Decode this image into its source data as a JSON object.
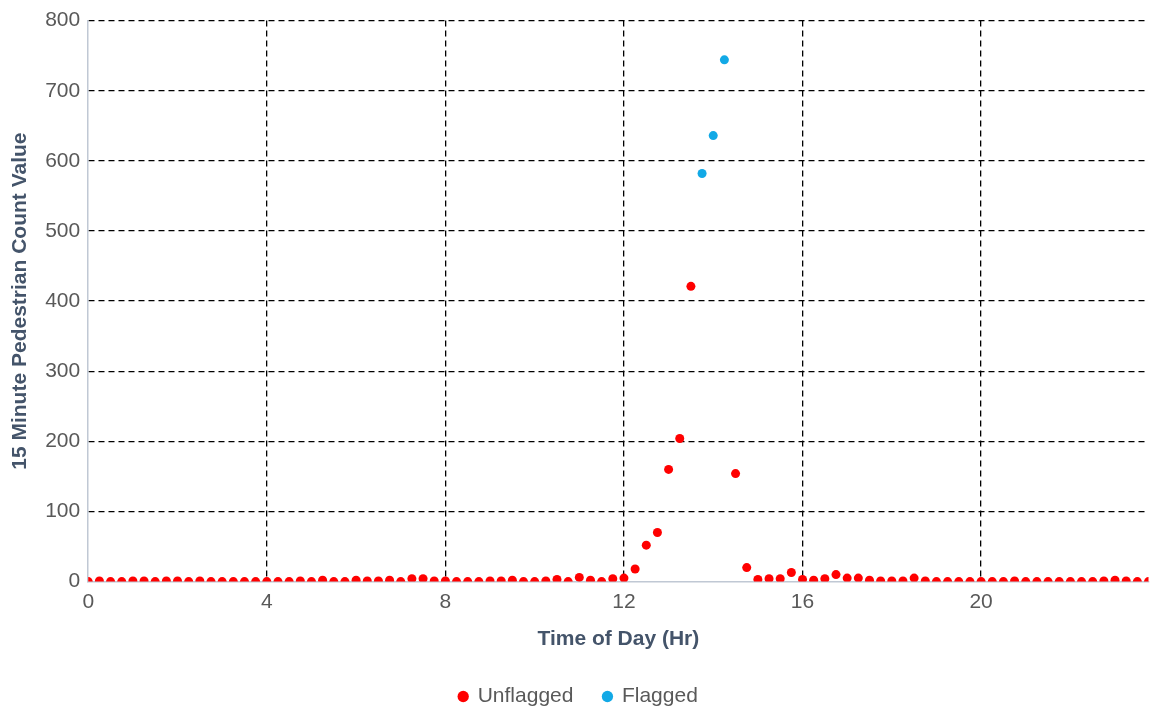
{
  "chart_data": {
    "type": "scatter",
    "xlabel": "Time of Day (Hr)",
    "ylabel": "15 Minute Pedestrian Count Value",
    "x": [
      0,
      0.25,
      0.5,
      0.75,
      1,
      1.25,
      1.5,
      1.75,
      2,
      2.25,
      2.5,
      2.75,
      3,
      3.25,
      3.5,
      3.75,
      4,
      4.25,
      4.5,
      4.75,
      5,
      5.25,
      5.5,
      5.75,
      6,
      6.25,
      6.5,
      6.75,
      7,
      7.25,
      7.5,
      7.75,
      8,
      8.25,
      8.5,
      8.75,
      9,
      9.25,
      9.5,
      9.75,
      10,
      10.25,
      10.5,
      10.75,
      11,
      11.25,
      11.5,
      11.75,
      12,
      12.25,
      12.5,
      12.75,
      13,
      13.25,
      13.5,
      13.75,
      14,
      14.25,
      14.5,
      14.75,
      15,
      15.25,
      15.5,
      15.75,
      16,
      16.25,
      16.5,
      16.75,
      17,
      17.25,
      17.5,
      17.75,
      18,
      18.25,
      18.5,
      18.75,
      19,
      19.25,
      19.5,
      19.75,
      20,
      20.25,
      20.5,
      20.75,
      21,
      21.25,
      21.5,
      21.75,
      22,
      22.25,
      22.5,
      22.75,
      23,
      23.25,
      23.5,
      23.75
    ],
    "series": [
      {
        "name": "Unflagged",
        "color": "#ff0000",
        "values": [
          0,
          1,
          0,
          0,
          1,
          1,
          0,
          1,
          1,
          0,
          1,
          0,
          0,
          0,
          0,
          0,
          0,
          0,
          0,
          1,
          0,
          2,
          0,
          0,
          2,
          1,
          1,
          2,
          0,
          4,
          4,
          1,
          1,
          0,
          0,
          0,
          1,
          1,
          2,
          0,
          0,
          1,
          3,
          0,
          6,
          2,
          0,
          4,
          5,
          18,
          52,
          70,
          160,
          204,
          421,
          null,
          null,
          null,
          154,
          20,
          3,
          4,
          4,
          13,
          3,
          2,
          4,
          10,
          5,
          5,
          2,
          1,
          1,
          1,
          5,
          1,
          0,
          0,
          0,
          0,
          0,
          0,
          0,
          1,
          0,
          0,
          0,
          0,
          0,
          0,
          0,
          1,
          2,
          1,
          0,
          0
        ]
      },
      {
        "name": "Flagged",
        "color": "#12a9e6",
        "values": [
          null,
          null,
          null,
          null,
          null,
          null,
          null,
          null,
          null,
          null,
          null,
          null,
          null,
          null,
          null,
          null,
          null,
          null,
          null,
          null,
          null,
          null,
          null,
          null,
          null,
          null,
          null,
          null,
          null,
          null,
          null,
          null,
          null,
          null,
          null,
          null,
          null,
          null,
          null,
          null,
          null,
          null,
          null,
          null,
          null,
          null,
          null,
          null,
          null,
          null,
          null,
          null,
          null,
          null,
          null,
          582,
          636,
          744,
          null,
          null,
          null,
          null,
          null,
          null,
          null,
          null,
          null,
          null,
          null,
          null,
          null,
          null,
          null,
          null,
          null,
          null,
          null,
          null,
          null,
          null,
          null,
          null,
          null,
          null,
          null,
          null,
          null,
          null,
          null,
          null,
          null,
          null,
          null,
          null,
          null,
          null
        ]
      }
    ],
    "xlim": [
      0,
      23.75
    ],
    "xticks": [
      0,
      4,
      8,
      12,
      16,
      20
    ],
    "ylim": [
      0,
      800
    ],
    "yticks": [
      0,
      100,
      200,
      300,
      400,
      500,
      600,
      700,
      800
    ],
    "grid": true,
    "legend": "bottom",
    "marker": "circle"
  }
}
